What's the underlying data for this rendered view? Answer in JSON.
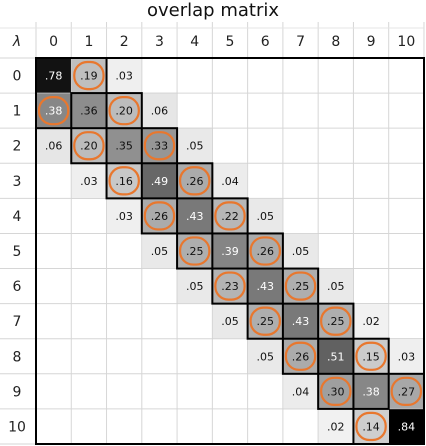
{
  "chart_data": {
    "type": "heatmap",
    "title": "overlap matrix",
    "corner_label": "λ",
    "x_labels": [
      "0",
      "1",
      "2",
      "3",
      "4",
      "5",
      "6",
      "7",
      "8",
      "9",
      "10"
    ],
    "y_labels": [
      "0",
      "1",
      "2",
      "3",
      "4",
      "5",
      "6",
      "7",
      "8",
      "9",
      "10"
    ],
    "highlight_color": "#E8772E",
    "cells": [
      {
        "row": 0,
        "col": 0,
        "label": ".78",
        "value": 0.78
      },
      {
        "row": 0,
        "col": 1,
        "label": ".19",
        "value": 0.19,
        "highlight": true
      },
      {
        "row": 0,
        "col": 2,
        "label": ".03",
        "value": 0.03
      },
      {
        "row": 1,
        "col": 0,
        "label": ".38",
        "value": 0.38,
        "highlight": true
      },
      {
        "row": 1,
        "col": 1,
        "label": ".36",
        "value": 0.36
      },
      {
        "row": 1,
        "col": 2,
        "label": ".20",
        "value": 0.2,
        "highlight": true
      },
      {
        "row": 1,
        "col": 3,
        "label": ".06",
        "value": 0.06
      },
      {
        "row": 2,
        "col": 0,
        "label": ".06",
        "value": 0.06
      },
      {
        "row": 2,
        "col": 1,
        "label": ".20",
        "value": 0.2,
        "highlight": true
      },
      {
        "row": 2,
        "col": 2,
        "label": ".35",
        "value": 0.35
      },
      {
        "row": 2,
        "col": 3,
        "label": ".33",
        "value": 0.33,
        "highlight": true
      },
      {
        "row": 2,
        "col": 4,
        "label": ".05",
        "value": 0.05
      },
      {
        "row": 3,
        "col": 1,
        "label": ".03",
        "value": 0.03
      },
      {
        "row": 3,
        "col": 2,
        "label": ".16",
        "value": 0.16,
        "highlight": true
      },
      {
        "row": 3,
        "col": 3,
        "label": ".49",
        "value": 0.49
      },
      {
        "row": 3,
        "col": 4,
        "label": ".26",
        "value": 0.26,
        "highlight": true
      },
      {
        "row": 3,
        "col": 5,
        "label": ".04",
        "value": 0.04
      },
      {
        "row": 4,
        "col": 2,
        "label": ".03",
        "value": 0.03
      },
      {
        "row": 4,
        "col": 3,
        "label": ".26",
        "value": 0.26,
        "highlight": true
      },
      {
        "row": 4,
        "col": 4,
        "label": ".43",
        "value": 0.43
      },
      {
        "row": 4,
        "col": 5,
        "label": ".22",
        "value": 0.22,
        "highlight": true
      },
      {
        "row": 4,
        "col": 6,
        "label": ".05",
        "value": 0.05
      },
      {
        "row": 5,
        "col": 3,
        "label": ".05",
        "value": 0.05
      },
      {
        "row": 5,
        "col": 4,
        "label": ".25",
        "value": 0.25,
        "highlight": true
      },
      {
        "row": 5,
        "col": 5,
        "label": ".39",
        "value": 0.39
      },
      {
        "row": 5,
        "col": 6,
        "label": ".26",
        "value": 0.26,
        "highlight": true
      },
      {
        "row": 5,
        "col": 7,
        "label": ".05",
        "value": 0.05
      },
      {
        "row": 6,
        "col": 4,
        "label": ".05",
        "value": 0.05
      },
      {
        "row": 6,
        "col": 5,
        "label": ".23",
        "value": 0.23,
        "highlight": true
      },
      {
        "row": 6,
        "col": 6,
        "label": ".43",
        "value": 0.43
      },
      {
        "row": 6,
        "col": 7,
        "label": ".25",
        "value": 0.25,
        "highlight": true
      },
      {
        "row": 6,
        "col": 8,
        "label": ".05",
        "value": 0.05
      },
      {
        "row": 7,
        "col": 5,
        "label": ".05",
        "value": 0.05
      },
      {
        "row": 7,
        "col": 6,
        "label": ".25",
        "value": 0.25,
        "highlight": true
      },
      {
        "row": 7,
        "col": 7,
        "label": ".43",
        "value": 0.43
      },
      {
        "row": 7,
        "col": 8,
        "label": ".25",
        "value": 0.25,
        "highlight": true
      },
      {
        "row": 7,
        "col": 9,
        "label": ".02",
        "value": 0.02
      },
      {
        "row": 8,
        "col": 6,
        "label": ".05",
        "value": 0.05
      },
      {
        "row": 8,
        "col": 7,
        "label": ".26",
        "value": 0.26,
        "highlight": true
      },
      {
        "row": 8,
        "col": 8,
        "label": ".51",
        "value": 0.51
      },
      {
        "row": 8,
        "col": 9,
        "label": ".15",
        "value": 0.15,
        "highlight": true
      },
      {
        "row": 8,
        "col": 10,
        "label": ".03",
        "value": 0.03
      },
      {
        "row": 9,
        "col": 7,
        "label": ".04",
        "value": 0.04
      },
      {
        "row": 9,
        "col": 8,
        "label": ".30",
        "value": 0.3,
        "highlight": true
      },
      {
        "row": 9,
        "col": 9,
        "label": ".38",
        "value": 0.38
      },
      {
        "row": 9,
        "col": 10,
        "label": ".27",
        "value": 0.27,
        "highlight": true
      },
      {
        "row": 10,
        "col": 8,
        "label": ".02",
        "value": 0.02
      },
      {
        "row": 10,
        "col": 9,
        "label": ".14",
        "value": 0.14,
        "highlight": true
      },
      {
        "row": 10,
        "col": 10,
        "label": ".84",
        "value": 0.84
      }
    ]
  }
}
